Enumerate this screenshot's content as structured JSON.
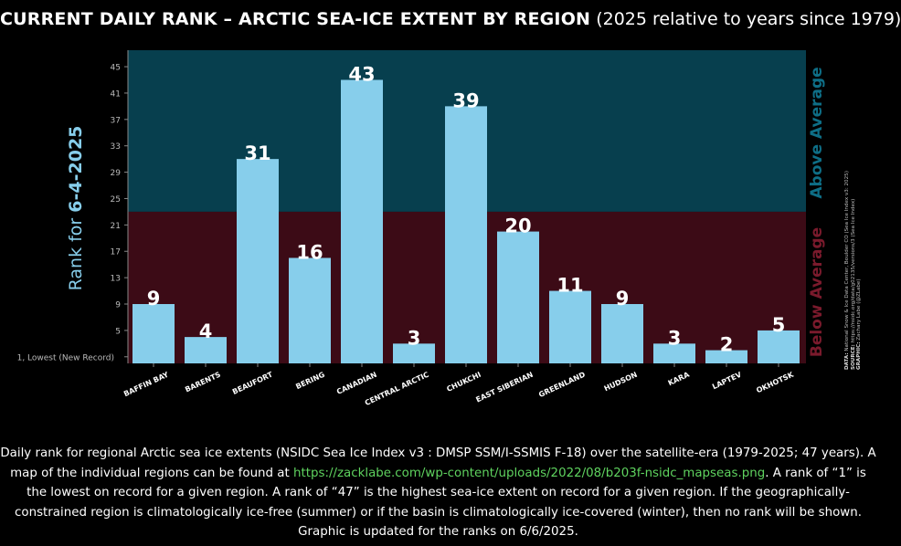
{
  "title": {
    "bold": "CURRENT DAILY RANK – ARCTIC SEA-ICE EXTENT BY REGION",
    "light": "(2025 relative to years since 1979)"
  },
  "chart_data": {
    "type": "bar",
    "categories": [
      "BAFFIN BAY",
      "BARENTS",
      "BEAUFORT",
      "BERING",
      "CANADIAN",
      "CENTRAL ARCTIC",
      "CHUKCHI",
      "EAST SIBERIAN",
      "GREENLAND",
      "HUDSON",
      "KARA",
      "LAPTEV",
      "OKHOTSK"
    ],
    "values": [
      9,
      4,
      31,
      16,
      43,
      3,
      39,
      20,
      11,
      9,
      3,
      2,
      5
    ],
    "ylabel_prefix": "Rank for ",
    "ylabel_date": "6-4-2025",
    "yticks": [
      45,
      41,
      37,
      33,
      29,
      25,
      21,
      17,
      13,
      9,
      5
    ],
    "ytick_lowest_label": "1, Lowest (New Record)",
    "ylim": [
      0,
      47.5
    ],
    "threshold": 23,
    "above_label": "Above Average",
    "below_label": "Below Average",
    "colors": {
      "bar": "#87ceeb",
      "above_bg": "#073f4e",
      "below_bg": "#3c0b16",
      "above_text": "#0e6e86",
      "below_text": "#7a1a2c",
      "ylabel_text": "#87ceeb",
      "tick_text": "#bbbbbb"
    }
  },
  "credits": {
    "line1_label": "DATA:",
    "line1": "National Snow & Ice Data Center, Boulder CO (Sea Ice Index v3: 2025)",
    "line2_label": "SOURCE:",
    "line2": "https://nsidc.org/data/g02135/versions/3 (Sea Ice Index)",
    "line3_label": "GRAPHIC:",
    "line3": "Zachary Labe (@ZLabe)"
  },
  "caption": {
    "part1": "Daily rank for regional Arctic sea ice extents (NSIDC Sea Ice Index v3 : DMSP SSM/I-SSMIS F-18) over the satellite-era (1979-2025; 47 years). A map of the individual regions can be found at ",
    "link": "https://zacklabe.com/wp-content/uploads/2022/08/b203f-nsidc_mapseas.png",
    "part2": ". A rank of “1” is the lowest on record for a given region. A rank of “47” is the highest sea-ice extent on record for a given region. If the geographically-constrained region is climatologically ice-free (summer) or if the basin is climatologically ice-covered (winter), then no rank will be shown. Graphic is updated for the ranks on 6/6/2025."
  }
}
